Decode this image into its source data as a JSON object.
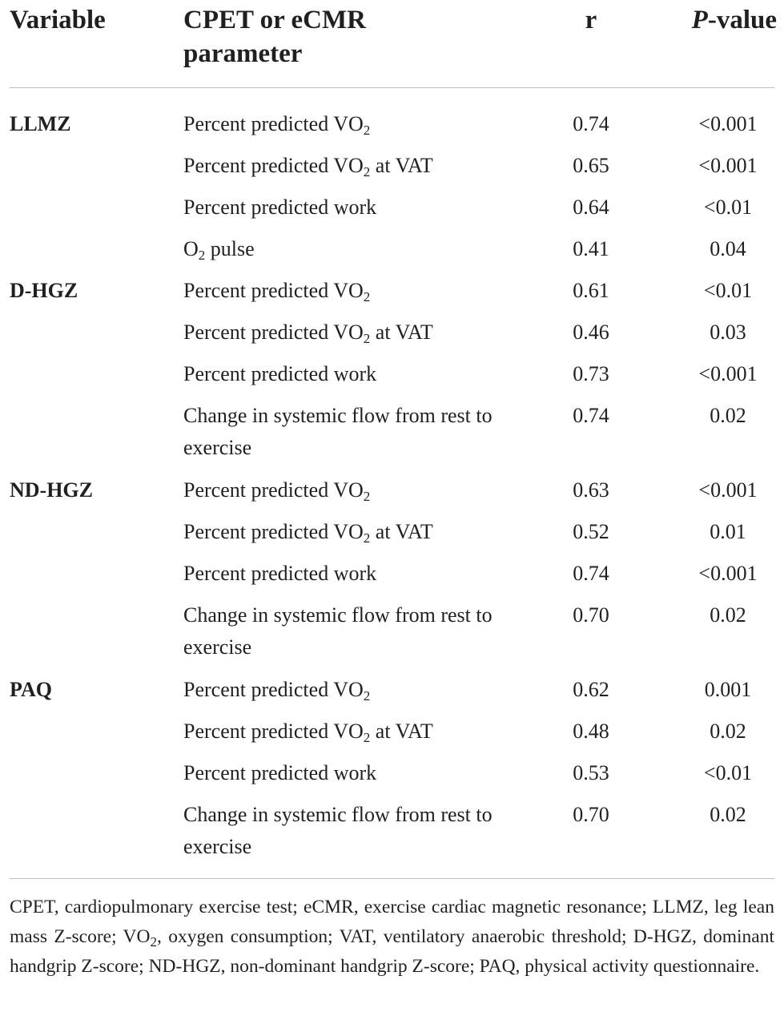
{
  "table": {
    "headers": {
      "variable": "Variable",
      "parameter": "CPET or eCMR parameter",
      "r": "r",
      "p_italic": "P",
      "p_rest": "-value"
    },
    "groups": [
      {
        "variable": "LLMZ",
        "rows": [
          {
            "param": "Percent predicted VO",
            "sub": "2",
            "suffix": "",
            "r": "0.74",
            "p": "<0.001"
          },
          {
            "param": "Percent predicted VO",
            "sub": "2",
            "suffix": " at VAT",
            "r": "0.65",
            "p": "<0.001"
          },
          {
            "param": "Percent predicted work",
            "sub": "",
            "suffix": "",
            "r": "0.64",
            "p": "<0.01"
          },
          {
            "param": "O",
            "sub": "2",
            "suffix": " pulse",
            "r": "0.41",
            "p": "0.04"
          }
        ]
      },
      {
        "variable": "D-HGZ",
        "rows": [
          {
            "param": "Percent predicted VO",
            "sub": "2",
            "suffix": "",
            "r": "0.61",
            "p": "<0.01"
          },
          {
            "param": "Percent predicted VO",
            "sub": "2",
            "suffix": " at VAT",
            "r": "0.46",
            "p": "0.03"
          },
          {
            "param": "Percent predicted work",
            "sub": "",
            "suffix": "",
            "r": "0.73",
            "p": "<0.001"
          },
          {
            "param": "Change in systemic flow from rest to exercise",
            "sub": "",
            "suffix": "",
            "r": "0.74",
            "p": "0.02"
          }
        ]
      },
      {
        "variable": "ND-HGZ",
        "rows": [
          {
            "param": "Percent predicted VO",
            "sub": "2",
            "suffix": "",
            "r": "0.63",
            "p": "<0.001"
          },
          {
            "param": "Percent predicted VO",
            "sub": "2",
            "suffix": " at VAT",
            "r": "0.52",
            "p": "0.01"
          },
          {
            "param": "Percent predicted work",
            "sub": "",
            "suffix": "",
            "r": "0.74",
            "p": "<0.001"
          },
          {
            "param": "Change in systemic flow from rest to exercise",
            "sub": "",
            "suffix": "",
            "r": "0.70",
            "p": "0.02"
          }
        ]
      },
      {
        "variable": "PAQ",
        "rows": [
          {
            "param": "Percent predicted VO",
            "sub": "2",
            "suffix": "",
            "r": "0.62",
            "p": "0.001"
          },
          {
            "param": "Percent predicted VO",
            "sub": "2",
            "suffix": " at VAT",
            "r": "0.48",
            "p": "0.02"
          },
          {
            "param": "Percent predicted work",
            "sub": "",
            "suffix": "",
            "r": "0.53",
            "p": "<0.01"
          },
          {
            "param": "Change in systemic flow from rest to exercise",
            "sub": "",
            "suffix": "",
            "r": "0.70",
            "p": "0.02"
          }
        ]
      }
    ]
  },
  "footnote": {
    "part1": "CPET, cardiopulmonary exercise test; eCMR, exercise cardiac magnetic resonance; LLMZ, leg lean mass Z-score; VO",
    "sub": "2",
    "part2": ", oxygen consumption; VAT, ventilatory anaerobic threshold; D-HGZ, dominant handgrip Z-score; ND-HGZ, non-dominant handgrip Z-score; PAQ, physical activity questionnaire."
  }
}
